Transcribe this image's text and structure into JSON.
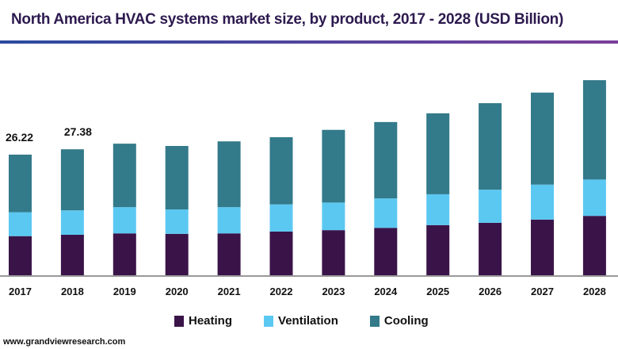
{
  "title": "North America HVAC systems market size, by product, 2017 - 2028 (USD Billion)",
  "source": "www.grandviewresearch.com",
  "colors": {
    "heating": "#3a1449",
    "ventilation": "#5bc8f2",
    "cooling": "#337a8a",
    "title": "#2d1a4f"
  },
  "chart_data": {
    "type": "bar",
    "stacked": true,
    "title": "North America HVAC systems market size, by product, 2017 - 2028 (USD Billion)",
    "categories": [
      "2017",
      "2018",
      "2019",
      "2020",
      "2021",
      "2022",
      "2023",
      "2024",
      "2025",
      "2026",
      "2027",
      "2028"
    ],
    "series": [
      {
        "name": "Heating",
        "color": "#3a1449",
        "values": [
          8.5,
          8.8,
          9.1,
          9.0,
          9.1,
          9.5,
          9.8,
          10.3,
          10.9,
          11.4,
          12.1,
          12.9
        ]
      },
      {
        "name": "Ventilation",
        "color": "#5bc8f2",
        "values": [
          5.2,
          5.3,
          5.7,
          5.3,
          5.7,
          5.9,
          6.0,
          6.4,
          6.7,
          7.2,
          7.6,
          7.9
        ]
      },
      {
        "name": "Cooling",
        "color": "#337a8a",
        "values": [
          12.52,
          13.28,
          13.8,
          13.8,
          14.3,
          14.6,
          15.8,
          16.6,
          17.6,
          18.8,
          20.0,
          21.6
        ]
      }
    ],
    "data_labels": [
      {
        "category": "2017",
        "text": "26.22"
      },
      {
        "category": "2018",
        "text": "27.38"
      }
    ],
    "ylim": [
      0,
      45
    ],
    "grid": false,
    "legend": "bottom"
  }
}
